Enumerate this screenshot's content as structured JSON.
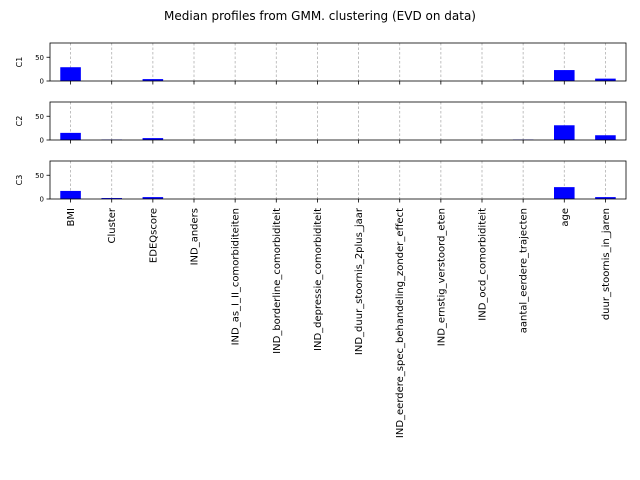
{
  "chart_data": {
    "type": "bar",
    "title": "Median profiles from GMM. clustering (EVD on data)",
    "categories": [
      "BMI",
      "Cluster",
      "EDEQscore",
      "IND_anders",
      "IND_as_I_II_comorbiditeiten",
      "IND_borderline_comorbiditeit",
      "IND_depressie_comorbiditeit",
      "IND_duur_stoornis_2plus_jaar",
      "IND_eerdere_spec_behandeling_zonder_effect",
      "IND_ernstig_verstoord_eten",
      "IND_ocd_comorbiditeit",
      "aantal_eerdere_trajecten",
      "age",
      "duur_stoornis_in_jaren"
    ],
    "ylim": [
      0,
      80
    ],
    "yticks": [
      0,
      50
    ],
    "grid": "x",
    "bar_color": "#0000ff",
    "panels": [
      {
        "ylabel": "C1",
        "values": [
          29,
          0,
          4,
          0,
          0,
          0,
          0,
          0,
          0,
          0,
          0,
          0,
          23,
          5
        ]
      },
      {
        "ylabel": "C2",
        "values": [
          15,
          1,
          4,
          0,
          0,
          0,
          0,
          0,
          0,
          0,
          0,
          1,
          31,
          10
        ]
      },
      {
        "ylabel": "C3",
        "values": [
          17,
          2,
          4,
          0,
          0,
          0,
          0,
          0,
          0,
          0,
          0,
          0,
          25,
          4
        ]
      }
    ]
  }
}
